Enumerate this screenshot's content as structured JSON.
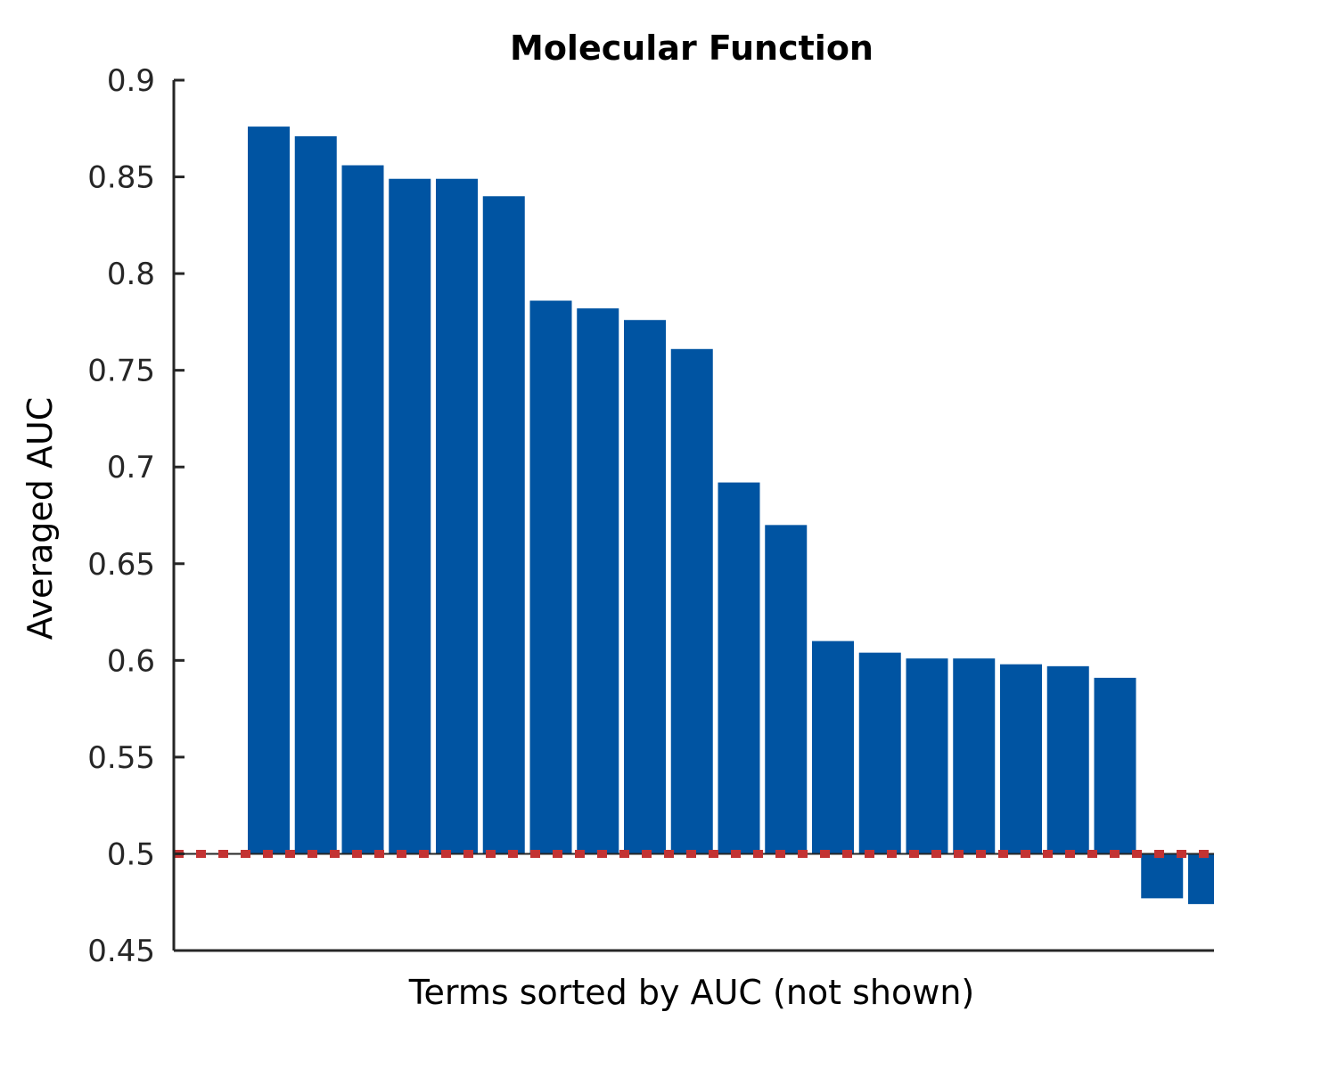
{
  "chart_data": {
    "type": "bar",
    "title": "Molecular Function",
    "xlabel": "Terms sorted by AUC (not shown)",
    "ylabel": "Averaged AUC",
    "ylim": [
      0.45,
      0.9
    ],
    "yticks": [
      "0.45",
      "0.5",
      "0.55",
      "0.6",
      "0.65",
      "0.7",
      "0.75",
      "0.8",
      "0.85",
      "0.9"
    ],
    "baseline": 0.5,
    "values": [
      0.876,
      0.871,
      0.856,
      0.849,
      0.849,
      0.84,
      0.786,
      0.782,
      0.776,
      0.761,
      0.692,
      0.67,
      0.61,
      0.604,
      0.601,
      0.601,
      0.598,
      0.597,
      0.591,
      0.477,
      0.474
    ],
    "bar_color": "#0054A2",
    "reference_line": {
      "value": 0.5,
      "color": "#C33333",
      "style": "dotted"
    }
  }
}
